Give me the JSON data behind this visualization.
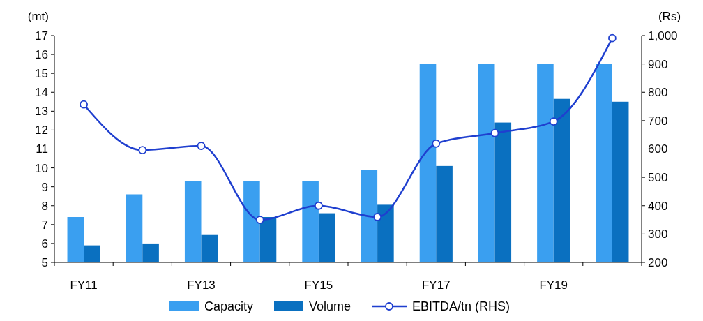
{
  "chart_data": {
    "type": "bar",
    "ylabel": "(mt)",
    "y2label": "(Rs)",
    "categories": [
      "FY11",
      null,
      "FY13",
      null,
      "FY15",
      null,
      "FY17",
      null,
      "FY19",
      null
    ],
    "series": [
      {
        "name": "Capacity",
        "color": "#3a9ff0",
        "values": [
          7.4,
          8.6,
          9.3,
          9.3,
          9.3,
          9.9,
          15.5,
          15.5,
          15.5,
          15.5
        ]
      },
      {
        "name": "Volume",
        "color": "#0a70c0",
        "values": [
          5.9,
          6.0,
          6.45,
          7.4,
          7.6,
          8.05,
          10.1,
          12.4,
          13.65,
          13.5
        ]
      },
      {
        "name": "EBITDA/tn (RHS)",
        "type": "line",
        "axis": "y2",
        "color": "#1f3fcf",
        "marker": "circle",
        "values": [
          757,
          596,
          611,
          350,
          400,
          360,
          619,
          656,
          697,
          991
        ]
      }
    ],
    "ylim": [
      5,
      17
    ],
    "yticks": [
      5,
      6,
      7,
      8,
      9,
      10,
      11,
      12,
      13,
      14,
      15,
      16,
      17
    ],
    "y2lim": [
      200,
      1000
    ],
    "y2ticks": [
      200,
      300,
      400,
      500,
      600,
      700,
      800,
      900,
      {
        "value": 1000,
        "label": "1,000"
      }
    ],
    "legend": "bottom",
    "grid": false
  }
}
